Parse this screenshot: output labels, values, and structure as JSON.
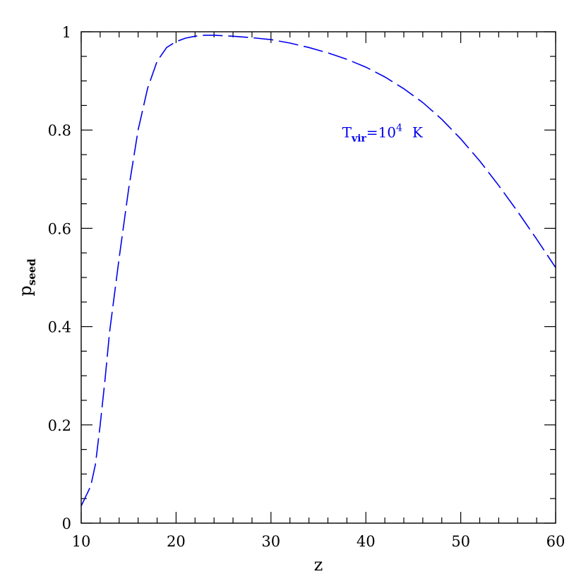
{
  "chart_data": {
    "type": "line",
    "title": "",
    "xlabel": "z",
    "ylabel": {
      "main": "p",
      "sub": "seed"
    },
    "xlim": [
      10,
      60
    ],
    "ylim": [
      0,
      1
    ],
    "x_ticks": [
      10,
      20,
      30,
      40,
      50,
      60
    ],
    "x_tick_labels": [
      "10",
      "20",
      "30",
      "40",
      "50",
      "60"
    ],
    "y_ticks": [
      0,
      0.2,
      0.4,
      0.6,
      0.8,
      1
    ],
    "y_tick_labels": [
      "0",
      "0.2",
      "0.4",
      "0.6",
      "0.8",
      "1"
    ],
    "grid": false,
    "legend": "none",
    "series": [
      {
        "color": "#0000ee",
        "line_style": "dashed",
        "x": [
          10,
          10.5,
          11,
          11.5,
          12,
          12.5,
          13,
          14,
          15,
          16,
          17,
          18,
          19,
          20,
          21,
          22,
          23,
          24,
          25,
          26,
          28,
          30,
          32,
          34,
          36,
          38,
          40,
          42,
          44,
          46,
          48,
          50,
          52,
          54,
          56,
          58,
          60
        ],
        "y": [
          0.035,
          0.055,
          0.075,
          0.12,
          0.2,
          0.29,
          0.39,
          0.54,
          0.68,
          0.8,
          0.885,
          0.94,
          0.968,
          0.98,
          0.987,
          0.991,
          0.993,
          0.993,
          0.992,
          0.991,
          0.988,
          0.984,
          0.977,
          0.968,
          0.957,
          0.944,
          0.928,
          0.908,
          0.884,
          0.856,
          0.822,
          0.782,
          0.737,
          0.687,
          0.634,
          0.578,
          0.52
        ]
      }
    ],
    "annotations": [
      {
        "text_main": "T",
        "text_sub": "vir",
        "text_rest": "=10",
        "text_sup": "4",
        "text_unit": "K",
        "x": 37.5,
        "y": 0.785
      }
    ]
  }
}
